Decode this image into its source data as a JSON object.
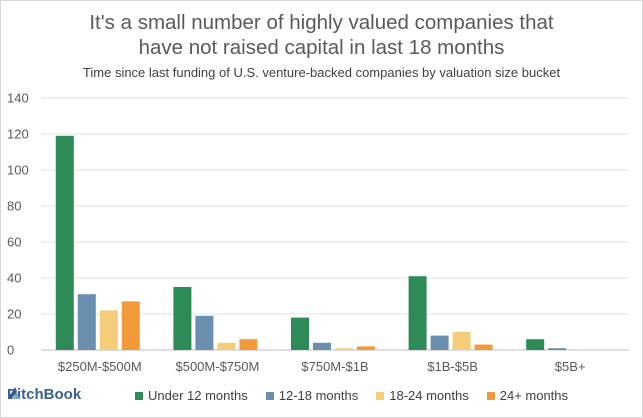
{
  "chart_data": {
    "type": "bar",
    "title_line1": "It's a small number of highly valued companies that",
    "title_line2": "have not raised capital in last 18 months",
    "subtitle": "Time since last funding of U.S. venture-backed companies by valuation size bucket",
    "categories": [
      "$250M-$500M",
      "$500M-$750M",
      "$750M-$1B",
      "$1B-$5B",
      "$5B+"
    ],
    "series": [
      {
        "name": "Under 12 months",
        "color": "#2e8b57",
        "values": [
          119,
          35,
          18,
          41,
          6
        ]
      },
      {
        "name": "12-18 months",
        "color": "#6a8fae",
        "values": [
          31,
          19,
          4,
          8,
          1
        ]
      },
      {
        "name": "18-24 months",
        "color": "#f5cd7a",
        "values": [
          22,
          4,
          1,
          10,
          0
        ]
      },
      {
        "name": "24+ months",
        "color": "#f29a3a",
        "values": [
          27,
          6,
          2,
          3,
          0
        ]
      }
    ],
    "ylim": [
      0,
      140
    ],
    "yticks": [
      0,
      20,
      40,
      60,
      80,
      100,
      120,
      140
    ],
    "grid": true,
    "legend_position": "bottom"
  },
  "branding": {
    "logo_text": "PitchBook",
    "logo_icon": "pitchbook-logo-icon",
    "logo_color": "#3a5f8f"
  }
}
